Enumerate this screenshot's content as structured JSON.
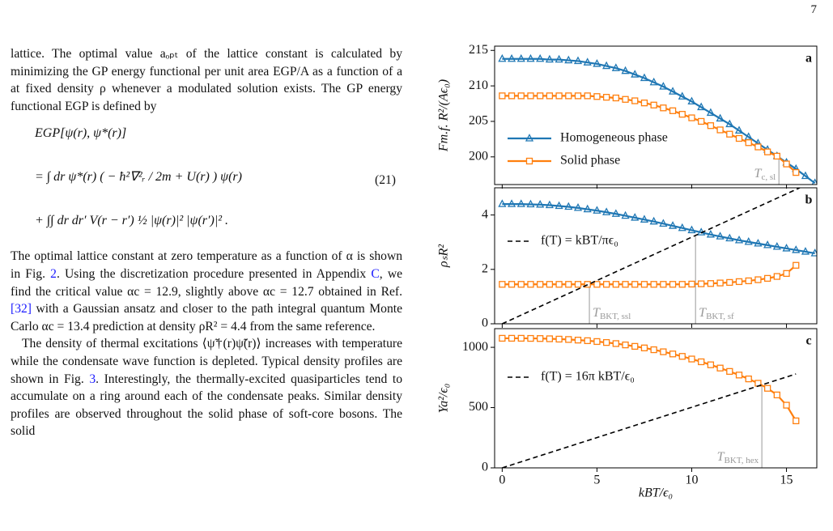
{
  "page_number": "7",
  "paragraphs": [
    [
      "lattice. The optimal value aₒₚₜ of the lattice constant is calculated by minimizing the GP energy functional per unit area EGP/A as a function of a at fixed density ρ whenever a modulated solution exists. The GP energy functional EGP is defined by"
    ],
    [
      "The optimal lattice constant at zero temperature as a function of α is shown in Fig. ",
      "2",
      ". Using the discretization procedure presented in Appendix ",
      "C",
      ", we find the critical value αc = 12.9, slightly above αc = 12.7 obtained in Ref. ",
      "[32]",
      " with a Gaussian ansatz and closer to the path integral quantum Monte Carlo αc = 13.4 prediction at density ρR² = 4.4 from the same reference."
    ],
    [
      "The density of thermal excitations ⟨ψ̃†(r)ψ̃(r)⟩ increases with temperature while the condensate wave function is depleted. Typical density profiles are shown in Fig. ",
      "3",
      ". Interestingly, the thermally-excited quasiparticles tend to accumulate on a ring around each of the condensate peaks. Similar density profiles are observed throughout the solid phase of soft-core bosons. The solid"
    ]
  ],
  "equation": {
    "lines": [
      "EGP[ψ(r), ψ*(r)]",
      "= ∫ dr ψ*(r) ( − ħ²∇²ᵣ / 2m + U(r) ) ψ(r)",
      "+ ∫∫ dr dr′ V(r − r′) ½ |ψ(r)|² |ψ(r′)|² ."
    ],
    "number": "(21)"
  },
  "chart_data": [
    {
      "type": "line",
      "label": "a",
      "ylabel": "Fm.f. R²/(Aϵ₀)",
      "xlim": [
        -0.4,
        16.6
      ],
      "xticks": [
        0,
        5,
        10,
        15
      ],
      "ylim": [
        196.1,
        215.6
      ],
      "yticks": [
        200,
        205,
        210,
        215
      ],
      "series": [
        {
          "name": "Homogeneous phase",
          "color": "#1f77b4",
          "marker": "triangle",
          "x": [
            0,
            0.5,
            1,
            1.5,
            2,
            2.5,
            3,
            3.5,
            4,
            4.5,
            5,
            5.5,
            6,
            6.5,
            7,
            7.5,
            8,
            8.5,
            9,
            9.5,
            10,
            10.5,
            11,
            11.5,
            12,
            12.5,
            13,
            13.5,
            14,
            14.5,
            15,
            15.5,
            16,
            16.5
          ],
          "values": [
            213.8,
            213.8,
            213.8,
            213.8,
            213.8,
            213.7,
            213.7,
            213.6,
            213.5,
            213.3,
            213.1,
            212.8,
            212.5,
            212.1,
            211.6,
            211.1,
            210.5,
            209.9,
            209.2,
            208.5,
            207.8,
            207.0,
            206.2,
            205.4,
            204.6,
            203.7,
            202.8,
            201.9,
            201.0,
            200.1,
            199.2,
            198.3,
            197.3,
            196.3
          ]
        },
        {
          "name": "Solid phase",
          "color": "#ff7f0e",
          "marker": "square",
          "x": [
            0,
            0.5,
            1,
            1.5,
            2,
            2.5,
            3,
            3.5,
            4,
            4.5,
            5,
            5.5,
            6,
            6.5,
            7,
            7.5,
            8,
            8.5,
            9,
            9.5,
            10,
            10.5,
            11,
            11.5,
            12,
            12.5,
            13,
            13.5,
            14,
            14.5,
            15,
            15.5
          ],
          "values": [
            208.6,
            208.6,
            208.6,
            208.6,
            208.6,
            208.6,
            208.6,
            208.6,
            208.6,
            208.6,
            208.5,
            208.4,
            208.3,
            208.1,
            207.9,
            207.6,
            207.3,
            206.9,
            206.5,
            206.0,
            205.5,
            205.0,
            204.4,
            203.8,
            203.2,
            202.6,
            202.0,
            201.4,
            200.7,
            200.1,
            199.0,
            197.8
          ]
        }
      ],
      "annotations": [
        {
          "symbol": "T",
          "subscript": "c, sl",
          "x": 14.6,
          "y": 200.1
        }
      ]
    },
    {
      "type": "line",
      "label": "b",
      "ylabel": "ρₛR²",
      "xlim": [
        -0.4,
        16.6
      ],
      "xticks": [
        0,
        5,
        10,
        15
      ],
      "ylim": [
        0,
        5
      ],
      "yticks": [
        0,
        2,
        4
      ],
      "series": [
        {
          "color": "#1f77b4",
          "marker": "triangle",
          "x": [
            0,
            0.5,
            1,
            1.5,
            2,
            2.5,
            3,
            3.5,
            4,
            4.5,
            5,
            5.5,
            6,
            6.5,
            7,
            7.5,
            8,
            8.5,
            9,
            9.5,
            10,
            10.5,
            11,
            11.5,
            12,
            12.5,
            13,
            13.5,
            14,
            14.5,
            15,
            15.5,
            16,
            16.5
          ],
          "values": [
            4.4,
            4.4,
            4.4,
            4.39,
            4.38,
            4.36,
            4.33,
            4.3,
            4.26,
            4.21,
            4.16,
            4.1,
            4.04,
            3.97,
            3.9,
            3.83,
            3.76,
            3.68,
            3.6,
            3.52,
            3.44,
            3.36,
            3.28,
            3.21,
            3.14,
            3.07,
            3.01,
            2.95,
            2.89,
            2.83,
            2.77,
            2.71,
            2.65,
            2.59
          ]
        },
        {
          "color": "#ff7f0e",
          "marker": "square",
          "x": [
            0,
            0.5,
            1,
            1.5,
            2,
            2.5,
            3,
            3.5,
            4,
            4.5,
            5,
            5.5,
            6,
            6.5,
            7,
            7.5,
            8,
            8.5,
            9,
            9.5,
            10,
            10.5,
            11,
            11.5,
            12,
            12.5,
            13,
            13.5,
            14,
            14.5,
            15,
            15.5
          ],
          "values": [
            1.45,
            1.45,
            1.45,
            1.45,
            1.45,
            1.45,
            1.45,
            1.45,
            1.45,
            1.45,
            1.45,
            1.45,
            1.45,
            1.45,
            1.45,
            1.45,
            1.45,
            1.45,
            1.45,
            1.45,
            1.46,
            1.47,
            1.48,
            1.5,
            1.52,
            1.55,
            1.58,
            1.62,
            1.67,
            1.74,
            1.85,
            2.15
          ]
        },
        {
          "name": "f(T) = kBT/πϵ₀",
          "color": "#000000",
          "linestyle": "dashed",
          "x": [
            0,
            15.7
          ],
          "values": [
            0,
            5
          ]
        }
      ],
      "annotations": [
        {
          "symbol": "T",
          "subscript": "BKT, ssl",
          "x": 4.6,
          "y": 1.45
        },
        {
          "symbol": "T",
          "subscript": "BKT, sf",
          "x": 10.2,
          "y": 3.28
        }
      ]
    },
    {
      "type": "line",
      "label": "c",
      "ylabel": "Ya²/ϵ₀",
      "xlabel": "kBT/ϵ₀",
      "xlim": [
        -0.4,
        16.6
      ],
      "xticks": [
        0,
        5,
        10,
        15
      ],
      "ylim": [
        0,
        1155
      ],
      "yticks": [
        0,
        500,
        1000
      ],
      "series": [
        {
          "color": "#ff7f0e",
          "marker": "square",
          "x": [
            0,
            0.5,
            1,
            1.5,
            2,
            2.5,
            3,
            3.5,
            4,
            4.5,
            5,
            5.5,
            6,
            6.5,
            7,
            7.5,
            8,
            8.5,
            9,
            9.5,
            10,
            10.5,
            11,
            11.5,
            12,
            12.5,
            13,
            13.5,
            14,
            14.5,
            15,
            15.5
          ],
          "values": [
            1075,
            1075,
            1075,
            1074,
            1073,
            1071,
            1068,
            1065,
            1060,
            1055,
            1048,
            1040,
            1031,
            1020,
            1008,
            995,
            980,
            963,
            945,
            925,
            903,
            880,
            855,
            828,
            800,
            770,
            738,
            702,
            660,
            605,
            520,
            390
          ]
        },
        {
          "name": "f(T) = 16π kBT/ϵ₀",
          "color": "#000000",
          "linestyle": "dashed",
          "x": [
            0,
            15.5
          ],
          "values": [
            0,
            779
          ]
        }
      ],
      "annotations": [
        {
          "symbol": "T",
          "subscript": "BKT, hex",
          "x": 13.7,
          "y": 689
        }
      ]
    }
  ]
}
